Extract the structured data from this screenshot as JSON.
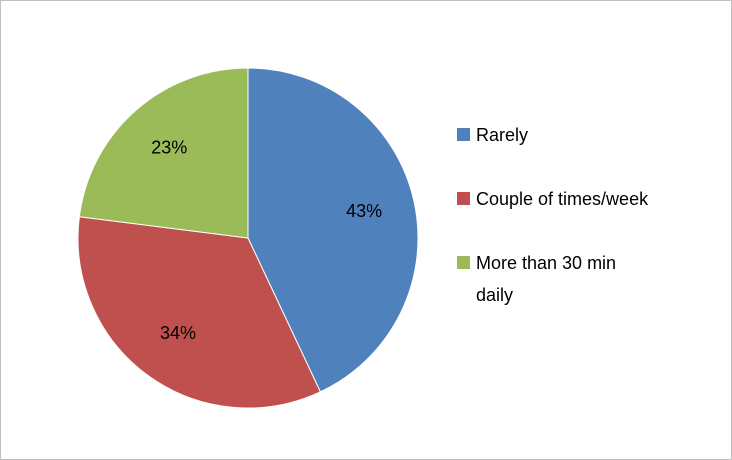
{
  "chart_data": {
    "type": "pie",
    "categories": [
      "Rarely",
      "Couple of times/week",
      "More than 30 min daily"
    ],
    "values": [
      43,
      34,
      23
    ],
    "value_labels": [
      "43%",
      "34%",
      "23%"
    ],
    "colors": [
      "#4f81bd",
      "#c0504d",
      "#9bbb59"
    ],
    "legend": "right"
  }
}
